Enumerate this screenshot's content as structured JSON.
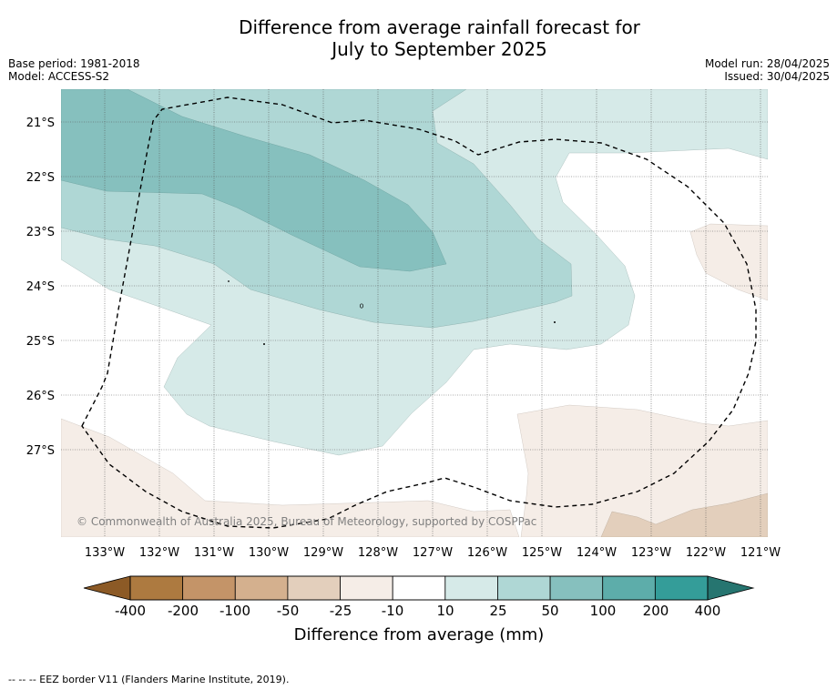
{
  "title_line1": "Difference from average rainfall forecast for",
  "title_line2": "July to September 2025",
  "base_period": "Base period: 1981-2018",
  "model": "Model: ACCESS-S2",
  "model_run": "Model run: 28/04/2025",
  "issued": "Issued: 30/04/2025",
  "lat_labels": [
    "21°S",
    "22°S",
    "23°S",
    "24°S",
    "25°S",
    "26°S",
    "27°S"
  ],
  "lon_labels": [
    "133°W",
    "132°W",
    "131°W",
    "130°W",
    "129°W",
    "128°W",
    "127°W",
    "126°W",
    "125°W",
    "124°W",
    "123°W",
    "122°W",
    "121°W"
  ],
  "copyright": "© Commonwealth of Australia 2025, Bureau of Meteorology, supported by COSPPac",
  "legend": {
    "title": "Difference from average (mm)",
    "ticks": [
      "-400",
      "-200",
      "-100",
      "-50",
      "-25",
      "-10",
      "10",
      "25",
      "50",
      "100",
      "200",
      "400"
    ],
    "colors": [
      "#ad7a40",
      "#c49468",
      "#d4b08e",
      "#e3cfbc",
      "#f5ede7",
      "#ffffff",
      "#d6eae8",
      "#afd7d5",
      "#86c0be",
      "#5dadaa",
      "#349d99"
    ],
    "low_extend_color": "#8c5a26",
    "high_extend_color": "#267570"
  },
  "footer": "--  --  -- EEZ border V11 (Flanders Marine Institute, 2019)."
}
